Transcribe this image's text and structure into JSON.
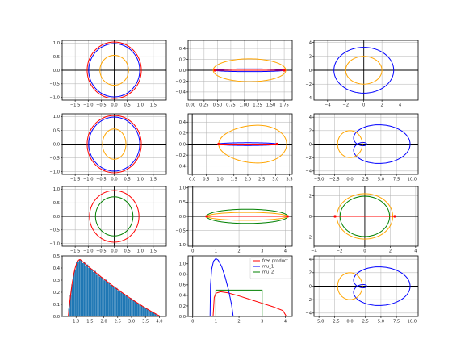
{
  "chart_data": [
    {
      "type": "line",
      "panel": "r1c1",
      "xlim": [
        -2,
        2
      ],
      "ylim": [
        -1.1,
        1.1
      ],
      "grid": true,
      "axis_lines": true,
      "xticks": [
        -1.5,
        -1,
        -0.5,
        0,
        0.5,
        1,
        1.5
      ],
      "xtick_labels": [
        "−1.5",
        "−1.0",
        "−0.5",
        "0.0",
        "0.5",
        "1.0",
        "1.5"
      ],
      "yticks": [
        -1,
        -0.5,
        0,
        0.5,
        1
      ],
      "ytick_labels": [
        "−1.0",
        "−0.5",
        "0.0",
        "0.5",
        "1.0"
      ],
      "curves": [
        {
          "kind": "ellipse",
          "cx": 0,
          "cy": 0,
          "rx": 1.04,
          "ry": 1.04,
          "color": "#ff0000"
        },
        {
          "kind": "ellipse",
          "cx": 0,
          "cy": 0,
          "rx": 0.98,
          "ry": 0.98,
          "color": "#0000ff"
        },
        {
          "kind": "ellipse",
          "cx": 0,
          "cy": 0,
          "rx": 0.55,
          "ry": 0.55,
          "color": "#ffa500"
        }
      ]
    },
    {
      "type": "line",
      "panel": "r1c2",
      "xlim": [
        -0.05,
        1.9
      ],
      "ylim": [
        -0.55,
        0.55
      ],
      "grid": true,
      "axis_lines": true,
      "xticks": [
        0,
        0.25,
        0.5,
        0.75,
        1,
        1.25,
        1.5,
        1.75
      ],
      "xtick_labels": [
        "0.00",
        "0.25",
        "0.50",
        "0.75",
        "1.00",
        "1.25",
        "1.50",
        "1.75"
      ],
      "yticks": [
        -0.4,
        -0.2,
        0,
        0.2,
        0.4
      ],
      "ytick_labels": [
        "−0.4",
        "−0.2",
        "0.0",
        "0.2",
        "0.4"
      ],
      "curves": [
        {
          "kind": "ellipse",
          "cx": 1.1,
          "cy": 0,
          "rx": 0.68,
          "ry": 0.21,
          "color": "#ffa500"
        },
        {
          "kind": "ellipse",
          "cx": 1.1,
          "cy": 0,
          "rx": 0.64,
          "ry": 0.025,
          "color": "#0000ff"
        },
        {
          "kind": "segment",
          "x1": 0.45,
          "y1": 0,
          "x2": 1.75,
          "y2": 0,
          "color": "#ff0000"
        }
      ],
      "markers": [
        {
          "x": 0.45,
          "y": 0
        },
        {
          "x": 1.75,
          "y": 0
        }
      ]
    },
    {
      "type": "line",
      "panel": "r1c3",
      "xlim": [
        -5.5,
        6
      ],
      "ylim": [
        -4.3,
        4.3
      ],
      "grid": true,
      "axis_lines": true,
      "xticks": [
        -4,
        -2,
        0,
        2,
        4
      ],
      "xtick_labels": [
        "−4",
        "−2",
        "0",
        "2",
        "4"
      ],
      "yticks": [
        -4,
        -2,
        0,
        2,
        4
      ],
      "ytick_labels": [
        "−4",
        "−2",
        "0",
        "2",
        "4"
      ],
      "curves": [
        {
          "kind": "ellipse",
          "cx": 0,
          "cy": 0,
          "rx": 3.3,
          "ry": 3.3,
          "color": "#0000ff"
        },
        {
          "kind": "ellipse",
          "cx": 0,
          "cy": 0,
          "rx": 2,
          "ry": 2,
          "color": "#ffa500"
        }
      ]
    },
    {
      "type": "line",
      "panel": "r2c1",
      "xlim": [
        -2,
        2
      ],
      "ylim": [
        -1.1,
        1.1
      ],
      "grid": true,
      "axis_lines": true,
      "xticks": [
        -1.5,
        -1,
        -0.5,
        0,
        0.5,
        1,
        1.5
      ],
      "xtick_labels": [
        "−1.5",
        "−1.0",
        "−0.5",
        "0.0",
        "0.5",
        "1.0",
        "1.5"
      ],
      "yticks": [
        -1,
        -0.5,
        0,
        0.5,
        1
      ],
      "ytick_labels": [
        "−1.0",
        "−0.5",
        "0.0",
        "0.5",
        "1.0"
      ],
      "curves": [
        {
          "kind": "ellipse",
          "cx": 0,
          "cy": 0,
          "rx": 1.04,
          "ry": 1.04,
          "color": "#ff0000"
        },
        {
          "kind": "ellipse",
          "cx": 0,
          "cy": 0,
          "rx": 0.98,
          "ry": 0.98,
          "color": "#0000ff"
        },
        {
          "kind": "ellipse",
          "cx": 0,
          "cy": 0,
          "rx": 0.45,
          "ry": 0.55,
          "color": "#ffa500"
        }
      ]
    },
    {
      "type": "line",
      "panel": "r2c2",
      "xlim": [
        -0.15,
        3.6
      ],
      "ylim": [
        -0.55,
        0.55
      ],
      "grid": true,
      "axis_lines": true,
      "xticks": [
        0,
        0.5,
        1,
        1.5,
        2,
        2.5,
        3,
        3.5
      ],
      "xtick_labels": [
        "0.0",
        "0.5",
        "1.0",
        "1.5",
        "2.0",
        "2.5",
        "3.0",
        "3.5"
      ],
      "yticks": [
        -0.4,
        -0.2,
        0,
        0.2,
        0.4
      ],
      "ytick_labels": [
        "−0.4",
        "−0.2",
        "0.0",
        "0.2",
        "0.4"
      ],
      "curves": [
        {
          "kind": "egg",
          "cx": 2.2,
          "cy": 0,
          "left": 0.95,
          "right": 3.4,
          "rx": 1.25,
          "ry": 0.34,
          "color": "#ffa500"
        },
        {
          "kind": "ellipse",
          "cx": 2.0,
          "cy": 0,
          "rx": 1.05,
          "ry": 0.025,
          "color": "#0000ff"
        },
        {
          "kind": "segment",
          "x1": 0.95,
          "y1": 0,
          "x2": 3.05,
          "y2": 0,
          "color": "#ff0000"
        }
      ],
      "markers": [
        {
          "x": 0.95,
          "y": 0
        },
        {
          "x": 3.05,
          "y": 0
        }
      ]
    },
    {
      "type": "line",
      "panel": "r2c3",
      "xlim": [
        -5.8,
        11
      ],
      "ylim": [
        -4.5,
        4.5
      ],
      "grid": true,
      "axis_lines": true,
      "xticks": [
        -5,
        -2.5,
        0,
        2.5,
        5,
        7.5,
        10
      ],
      "xtick_labels": [
        "−5.0",
        "−2.5",
        "0.0",
        "2.5",
        "5.0",
        "7.5",
        "10.0"
      ],
      "yticks": [
        -4,
        -2,
        0,
        2,
        4
      ],
      "ytick_labels": [
        "−4",
        "−2",
        "0",
        "2",
        "4"
      ],
      "curves": [
        {
          "kind": "limacon",
          "a": 3.5,
          "b": 2.5,
          "shift": 0,
          "color": "#0000ff"
        },
        {
          "kind": "ellipse",
          "cx": 0,
          "cy": 0,
          "rx": 2,
          "ry": 2,
          "color": "#ffa500"
        }
      ]
    },
    {
      "type": "line",
      "panel": "r3c1",
      "xlim": [
        -2,
        2
      ],
      "ylim": [
        -1.1,
        1.1
      ],
      "grid": true,
      "axis_lines": true,
      "xticks": [
        -1.5,
        -1,
        -0.5,
        0,
        0.5,
        1,
        1.5
      ],
      "xtick_labels": [
        "−1.5",
        "−1.0",
        "−0.5",
        "0.0",
        "0.5",
        "1.0",
        "1.5"
      ],
      "yticks": [
        -1,
        -0.5,
        0,
        0.5,
        1
      ],
      "ytick_labels": [
        "−1.0",
        "−0.5",
        "0.0",
        "0.5",
        "1.0"
      ],
      "curves": [
        {
          "kind": "ellipse",
          "cx": 0,
          "cy": 0,
          "rx": 0.95,
          "ry": 0.95,
          "color": "#ff0000"
        },
        {
          "kind": "ellipse",
          "cx": 0,
          "cy": 0,
          "rx": 0.72,
          "ry": 0.72,
          "color": "#008000"
        }
      ]
    },
    {
      "type": "line",
      "panel": "r3c2",
      "xlim": [
        -0.2,
        4.3
      ],
      "ylim": [
        -1.05,
        1.05
      ],
      "grid": true,
      "axis_lines": true,
      "xticks": [
        0,
        1,
        2,
        3,
        4
      ],
      "xtick_labels": [
        "0",
        "1",
        "2",
        "3",
        "4"
      ],
      "yticks": [
        -1,
        -0.5,
        0,
        0.5,
        1
      ],
      "ytick_labels": [
        "−1.0",
        "−0.5",
        "0.0",
        "0.5",
        "1.0"
      ],
      "curves": [
        {
          "kind": "ellipse",
          "cx": 2.35,
          "cy": 0,
          "rx": 1.75,
          "ry": 0.25,
          "color": "#008000"
        },
        {
          "kind": "ellipse",
          "cx": 2.35,
          "cy": 0,
          "rx": 1.72,
          "ry": 0.14,
          "color": "#ffa500"
        },
        {
          "kind": "segment",
          "x1": 0.6,
          "y1": 0,
          "x2": 4.1,
          "y2": 0,
          "color": "#ff0000"
        }
      ],
      "markers": [
        {
          "x": 0.6,
          "y": 0
        },
        {
          "x": 4.1,
          "y": 0
        }
      ]
    },
    {
      "type": "line",
      "panel": "r3c3",
      "xlim": [
        -4,
        4.2
      ],
      "ylim": [
        -2.9,
        2.9
      ],
      "grid": true,
      "axis_lines": true,
      "xticks": [
        -4,
        -2,
        0,
        2,
        4
      ],
      "xtick_labels": [
        "−4",
        "−2",
        "0",
        "2",
        "4"
      ],
      "yticks": [
        -2,
        0,
        2
      ],
      "ytick_labels": [
        "−2",
        "0",
        "2"
      ],
      "curves": [
        {
          "kind": "ellipse",
          "cx": 0,
          "cy": 0,
          "rx": 2.2,
          "ry": 2.2,
          "color": "#ffa500"
        },
        {
          "kind": "ellipse",
          "cx": 0,
          "cy": 0,
          "rx": 1.95,
          "ry": 1.95,
          "color": "#008000"
        },
        {
          "kind": "segment",
          "x1": -2.35,
          "y1": 0,
          "x2": 2.35,
          "y2": 0,
          "color": "#ff0000"
        }
      ],
      "markers": [
        {
          "x": -2.35,
          "y": 0
        },
        {
          "x": 2.35,
          "y": 0
        }
      ]
    },
    {
      "type": "bar",
      "panel": "r4c1",
      "xlim": [
        0.5,
        4.25
      ],
      "ylim": [
        0,
        0.5
      ],
      "grid": false,
      "axis_lines": false,
      "xticks": [
        1,
        1.5,
        2,
        2.5,
        3,
        3.5,
        4
      ],
      "xtick_labels": [
        "1.0",
        "1.5",
        "2.0",
        "2.5",
        "3.0",
        "3.5",
        "4.0"
      ],
      "yticks": [
        0,
        0.1,
        0.2,
        0.3,
        0.4,
        0.5
      ],
      "ytick_labels": [
        "0.0",
        "0.1",
        "0.2",
        "0.3",
        "0.4",
        "0.5"
      ],
      "histogram": {
        "x_min": 0.72,
        "x_max": 4.05,
        "bins": 60,
        "peak": 1.15,
        "peak_value": 0.47,
        "color": "#1f77b4"
      },
      "density_curve": {
        "color": "#ff0000"
      }
    },
    {
      "type": "line",
      "panel": "r4c2",
      "xlim": [
        -0.2,
        4.3
      ],
      "ylim": [
        0,
        1.15
      ],
      "grid": false,
      "axis_lines": true,
      "xticks": [
        0,
        1,
        2,
        3,
        4
      ],
      "xtick_labels": [
        "0",
        "1",
        "2",
        "3",
        "4"
      ],
      "yticks": [
        0,
        0.2,
        0.4,
        0.6,
        0.8,
        1.0
      ],
      "ytick_labels": [
        "0.0",
        "0.2",
        "0.4",
        "0.6",
        "0.8",
        "1.0"
      ],
      "series": [
        {
          "name": "free product",
          "color": "#ff0000",
          "x": [
            0.88,
            0.93,
            1.0,
            1.2,
            1.5,
            2.0,
            2.5,
            3.0,
            3.5,
            3.9,
            4.05
          ],
          "y": [
            0,
            0.36,
            0.44,
            0.47,
            0.45,
            0.39,
            0.32,
            0.25,
            0.18,
            0.11,
            0
          ]
        },
        {
          "name": "mu_1",
          "color": "#0000ff",
          "x": [
            0.75,
            0.77,
            0.82,
            0.9,
            1.0,
            1.1,
            1.25,
            1.4,
            1.55,
            1.68,
            1.75
          ],
          "y": [
            0,
            0.6,
            0.9,
            1.05,
            1.1,
            1.07,
            0.95,
            0.75,
            0.5,
            0.22,
            0
          ]
        },
        {
          "name": "mu_2",
          "color": "#008000",
          "x": [
            1.0,
            1.0,
            3.0,
            3.0
          ],
          "y": [
            0,
            0.5,
            0.5,
            0
          ]
        }
      ],
      "legend": "top-right"
    },
    {
      "type": "line",
      "panel": "r4c3",
      "xlim": [
        -5.8,
        11
      ],
      "ylim": [
        -4.5,
        4.5
      ],
      "grid": true,
      "axis_lines": true,
      "xticks": [
        -5,
        -2.5,
        0,
        2.5,
        5,
        7.5,
        10
      ],
      "xtick_labels": [
        "−5.0",
        "−2.5",
        "0.0",
        "2.5",
        "5.0",
        "7.5",
        "10.0"
      ],
      "yticks": [
        -4,
        -2,
        0,
        2,
        4
      ],
      "ytick_labels": [
        "−4",
        "−2",
        "0",
        "2",
        "4"
      ],
      "curves": [
        {
          "kind": "limacon",
          "a": 3.5,
          "b": 2.5,
          "shift": 0,
          "color": "#0000ff"
        },
        {
          "kind": "ellipse",
          "cx": 0,
          "cy": 0,
          "rx": 2,
          "ry": 2,
          "color": "#ffa500"
        }
      ]
    }
  ]
}
